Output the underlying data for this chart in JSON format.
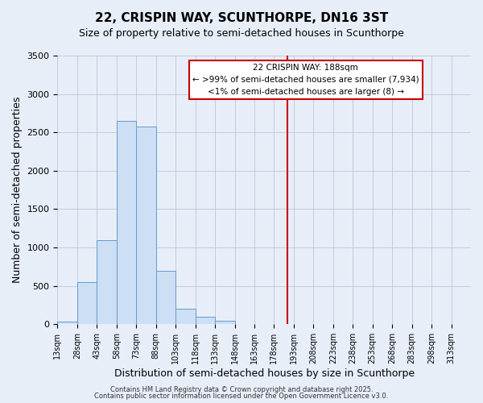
{
  "title": "22, CRISPIN WAY, SCUNTHORPE, DN16 3ST",
  "subtitle": "Size of property relative to semi-detached houses in Scunthorpe",
  "xlabel": "Distribution of semi-detached houses by size in Scunthorpe",
  "ylabel": "Number of semi-detached properties",
  "bin_labels": [
    "13sqm",
    "28sqm",
    "43sqm",
    "58sqm",
    "73sqm",
    "88sqm",
    "103sqm",
    "118sqm",
    "133sqm",
    "148sqm",
    "163sqm",
    "178sqm",
    "193sqm",
    "208sqm",
    "223sqm",
    "238sqm",
    "253sqm",
    "268sqm",
    "283sqm",
    "298sqm",
    "313sqm"
  ],
  "bin_edges": [
    13,
    28,
    43,
    58,
    73,
    88,
    103,
    118,
    133,
    148,
    163,
    178,
    193,
    208,
    223,
    238,
    253,
    268,
    283,
    298,
    313
  ],
  "bar_heights": [
    30,
    550,
    1100,
    2650,
    2580,
    700,
    200,
    100,
    50,
    0,
    0,
    0,
    0,
    0,
    0,
    0,
    0,
    0,
    0,
    0
  ],
  "bar_color": "#ccdff5",
  "bar_edge_color": "#6699cc",
  "vline_x": 188,
  "vline_color": "#cc0000",
  "ylim": [
    0,
    3500
  ],
  "yticks": [
    0,
    500,
    1000,
    1500,
    2000,
    2500,
    3000,
    3500
  ],
  "annotation_title": "22 CRISPIN WAY: 188sqm",
  "annotation_line1": "← >99% of semi-detached houses are smaller (7,934)",
  "annotation_line2": "<1% of semi-detached houses are larger (8) →",
  "annotation_box_facecolor": "#ffffff",
  "annotation_box_edgecolor": "#cc0000",
  "footer1": "Contains HM Land Registry data © Crown copyright and database right 2025.",
  "footer2": "Contains public sector information licensed under the Open Government Licence v3.0.",
  "background_color": "#e8eef8",
  "grid_color": "#b8c8d8",
  "title_fontsize": 11,
  "subtitle_fontsize": 9,
  "axis_label_fontsize": 9,
  "tick_fontsize": 7,
  "annotation_fontsize": 7.5,
  "footer_fontsize": 6
}
